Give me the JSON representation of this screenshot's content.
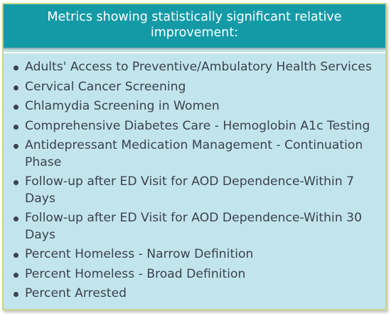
{
  "title": "Metrics showing statistically significant  relative improvement:",
  "metrics": [
    "Adults' Access to Preventive/Ambulatory Health Services",
    "Cervical Cancer Screening",
    "Chlamydia Screening in Women",
    "Comprehensive Diabetes Care - Hemoglobin A1c Testing",
    "Antidepressant Medication Management - Continuation Phase",
    "Follow-up after ED Visit for AOD Dependence-Within 7 Days",
    "Follow-up after ED Visit for AOD Dependence-Within 30 Days",
    "Percent Homeless - Narrow Definition",
    "Percent Homeless - Broad Definition",
    "Percent Arrested"
  ],
  "colors": {
    "header_bg": "#149aa7",
    "body_bg": "#c2e5eb",
    "border": "#c8d68a",
    "text": "#3b4150"
  }
}
